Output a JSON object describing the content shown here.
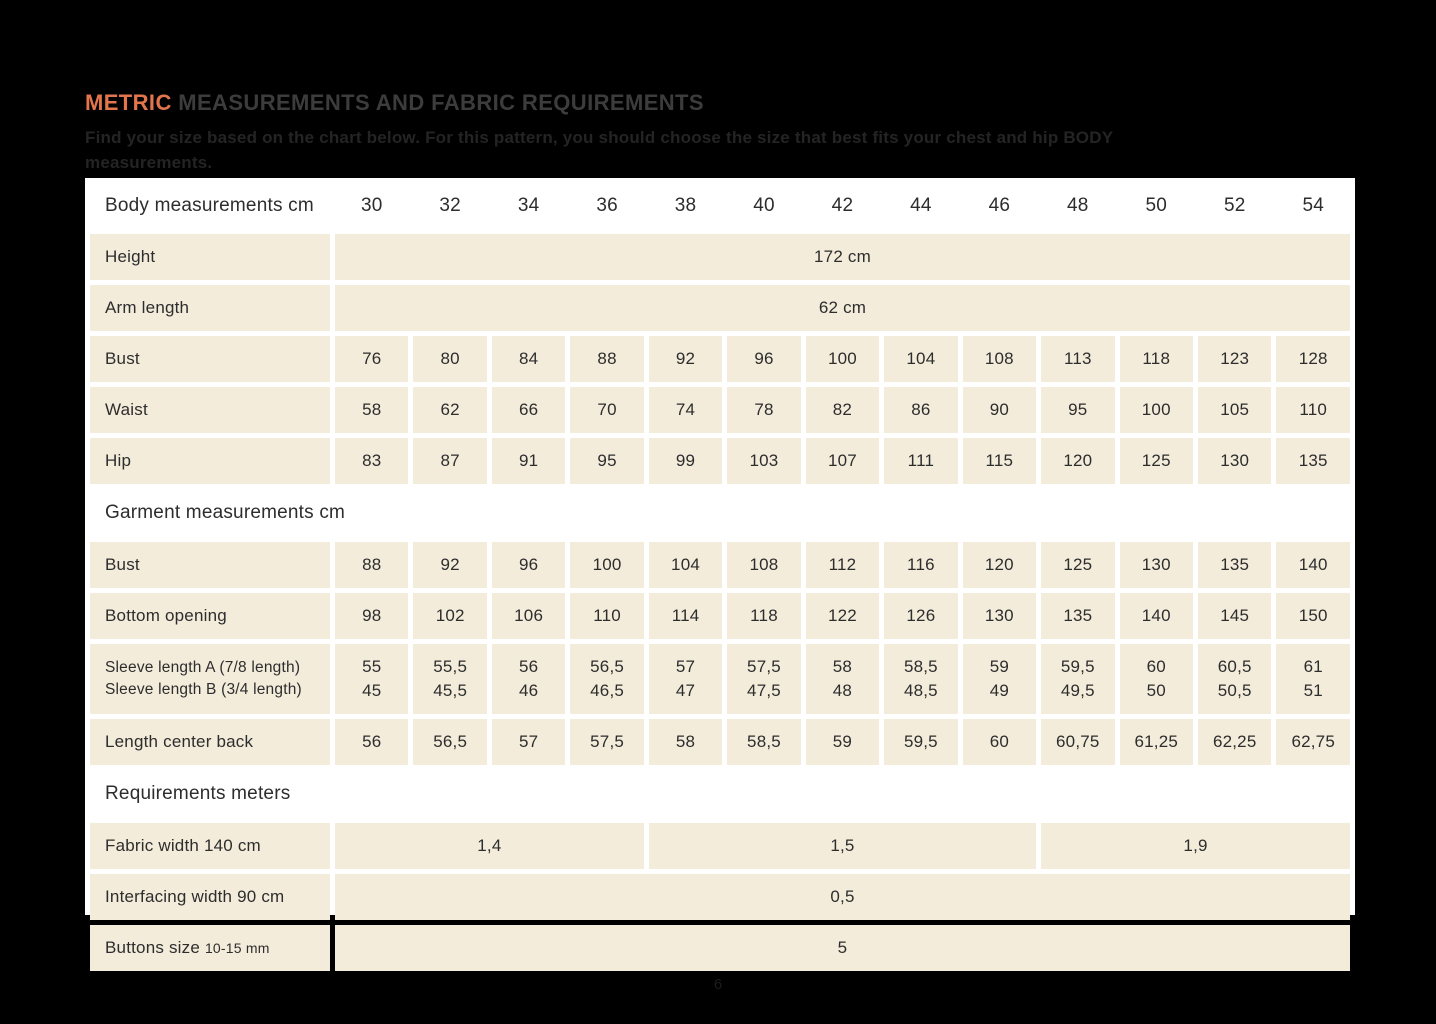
{
  "header": {
    "title_accent": "METRIC",
    "title_rest": " MEASUREMENTS AND FABRIC REQUIREMENTS",
    "subtitle_line1": "Find your size based on the chart below. For this pattern, you should choose the size that best fits your chest and hip BODY",
    "subtitle_line2": "measurements."
  },
  "footer": {
    "page_number": "6"
  },
  "colors": {
    "page_bg": "#000000",
    "table_bg": "#ffffff",
    "cell_beige": "#f3ecdb",
    "accent_orange": "#e2754b",
    "text_dark": "#2d2d2d"
  },
  "chart_data": {
    "type": "table",
    "header": {
      "label": "Body measurements cm",
      "sizes": [
        "30",
        "32",
        "34",
        "36",
        "38",
        "40",
        "42",
        "44",
        "46",
        "48",
        "50",
        "52",
        "54"
      ]
    },
    "rows": [
      {
        "kind": "merged",
        "label": "Height",
        "value": "172 cm"
      },
      {
        "kind": "merged",
        "label": "Arm length",
        "value": "62 cm"
      },
      {
        "kind": "cells",
        "label": "Bust",
        "values": [
          "76",
          "80",
          "84",
          "88",
          "92",
          "96",
          "100",
          "104",
          "108",
          "113",
          "118",
          "123",
          "128"
        ]
      },
      {
        "kind": "cells",
        "label": "Waist",
        "values": [
          "58",
          "62",
          "66",
          "70",
          "74",
          "78",
          "82",
          "86",
          "90",
          "95",
          "100",
          "105",
          "110"
        ]
      },
      {
        "kind": "cells",
        "label": "Hip",
        "values": [
          "83",
          "87",
          "91",
          "95",
          "99",
          "103",
          "107",
          "111",
          "115",
          "120",
          "125",
          "130",
          "135"
        ]
      },
      {
        "kind": "section",
        "label": "Garment measurements cm"
      },
      {
        "kind": "cells",
        "label": "Bust",
        "values": [
          "88",
          "92",
          "96",
          "100",
          "104",
          "108",
          "112",
          "116",
          "120",
          "125",
          "130",
          "135",
          "140"
        ]
      },
      {
        "kind": "cells",
        "label": "Bottom opening",
        "values": [
          "98",
          "102",
          "106",
          "110",
          "114",
          "118",
          "122",
          "126",
          "130",
          "135",
          "140",
          "145",
          "150"
        ]
      },
      {
        "kind": "cells2",
        "label_line1": "Sleeve length  A (7/8 length)",
        "label_line2": "Sleeve length B (3/4 length)",
        "values_line1": [
          "55",
          "55,5",
          "56",
          "56,5",
          "57",
          "57,5",
          "58",
          "58,5",
          "59",
          "59,5",
          "60",
          "60,5",
          "61"
        ],
        "values_line2": [
          "45",
          "45,5",
          "46",
          "46,5",
          "47",
          "47,5",
          "48",
          "48,5",
          "49",
          "49,5",
          "50",
          "50,5",
          "51"
        ]
      },
      {
        "kind": "cells",
        "label": "Length center back",
        "values": [
          "56",
          "56,5",
          "57",
          "57,5",
          "58",
          "58,5",
          "59",
          "59,5",
          "60",
          "60,75",
          "61,25",
          "62,25",
          "62,75"
        ]
      },
      {
        "kind": "section",
        "label": "Requirements meters"
      },
      {
        "kind": "spans",
        "label": "Fabric width 140 cm",
        "spans": [
          {
            "value": "1,4",
            "cols": 4
          },
          {
            "value": "1,5",
            "cols": 5
          },
          {
            "value": "1,9",
            "cols": 4
          }
        ]
      },
      {
        "kind": "merged",
        "label": "Interfacing width 90 cm",
        "value": "0,5"
      },
      {
        "kind": "merged",
        "label": "Buttons size",
        "label_small": "10-15 mm",
        "value": "5"
      }
    ]
  }
}
